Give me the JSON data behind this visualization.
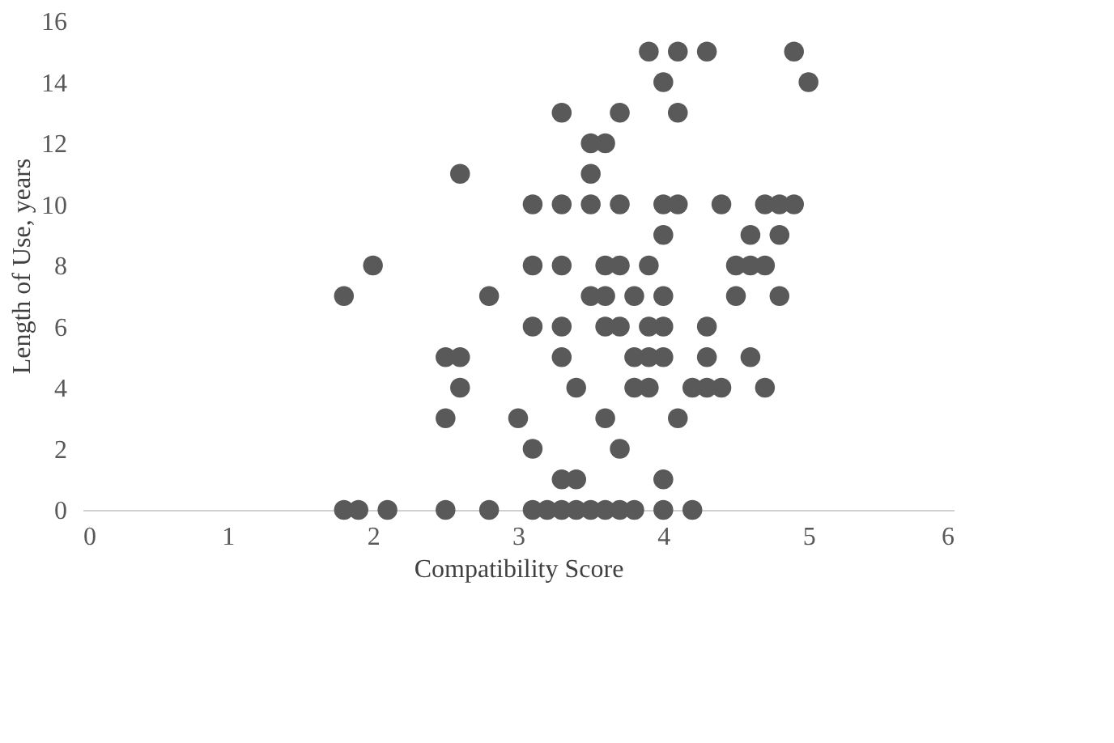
{
  "chart_data": {
    "type": "scatter",
    "xlabel": "Compatibility Score",
    "ylabel": "Length of Use, years",
    "x": [
      3.9,
      4.1,
      4.3,
      4.9,
      4.0,
      5.0,
      3.3,
      3.7,
      4.1,
      3.5,
      3.6,
      3.5,
      2.6,
      3.1,
      3.3,
      3.5,
      3.7,
      4.0,
      4.1,
      4.4,
      4.7,
      4.8,
      4.9,
      4.0,
      4.6,
      4.8,
      2.0,
      3.1,
      3.3,
      3.6,
      3.7,
      3.9,
      4.5,
      4.6,
      4.7,
      1.8,
      2.8,
      3.5,
      3.6,
      3.8,
      4.0,
      4.5,
      4.8,
      3.1,
      3.3,
      3.6,
      3.7,
      3.9,
      4.0,
      4.3,
      2.5,
      2.6,
      3.3,
      3.8,
      3.9,
      4.0,
      4.3,
      4.6,
      2.6,
      3.4,
      3.8,
      3.9,
      4.2,
      4.3,
      4.4,
      4.7,
      2.5,
      3.0,
      3.6,
      4.1,
      3.1,
      3.7,
      3.3,
      3.4,
      4.0,
      1.8,
      1.9,
      2.1,
      2.5,
      2.8,
      3.1,
      3.2,
      3.3,
      3.4,
      3.5,
      3.6,
      3.7,
      3.8,
      4.0,
      4.2
    ],
    "values": [
      15,
      15,
      15,
      15,
      14,
      14,
      13,
      13,
      13,
      12,
      12,
      11,
      11,
      10,
      10,
      10,
      10,
      10,
      10,
      10,
      10,
      10,
      10,
      9,
      9,
      9,
      8,
      8,
      8,
      8,
      8,
      8,
      8,
      8,
      8,
      7,
      7,
      7,
      7,
      7,
      7,
      7,
      7,
      6,
      6,
      6,
      6,
      6,
      6,
      6,
      5,
      5,
      5,
      5,
      5,
      5,
      5,
      5,
      4,
      4,
      4,
      4,
      4,
      4,
      4,
      4,
      3,
      3,
      3,
      3,
      2,
      2,
      1,
      1,
      1,
      0,
      0,
      0,
      0,
      0,
      0,
      0,
      0,
      0,
      0,
      0,
      0,
      0,
      0,
      0
    ],
    "color": "#595959",
    "marker": "circle",
    "grid": false,
    "xlim": [
      0,
      6
    ],
    "xticks": [
      0,
      1,
      2,
      3,
      4,
      5,
      6
    ],
    "ylim": [
      0,
      16
    ],
    "yticks": [
      0,
      2,
      4,
      6,
      8,
      10,
      12,
      14,
      16
    ]
  }
}
